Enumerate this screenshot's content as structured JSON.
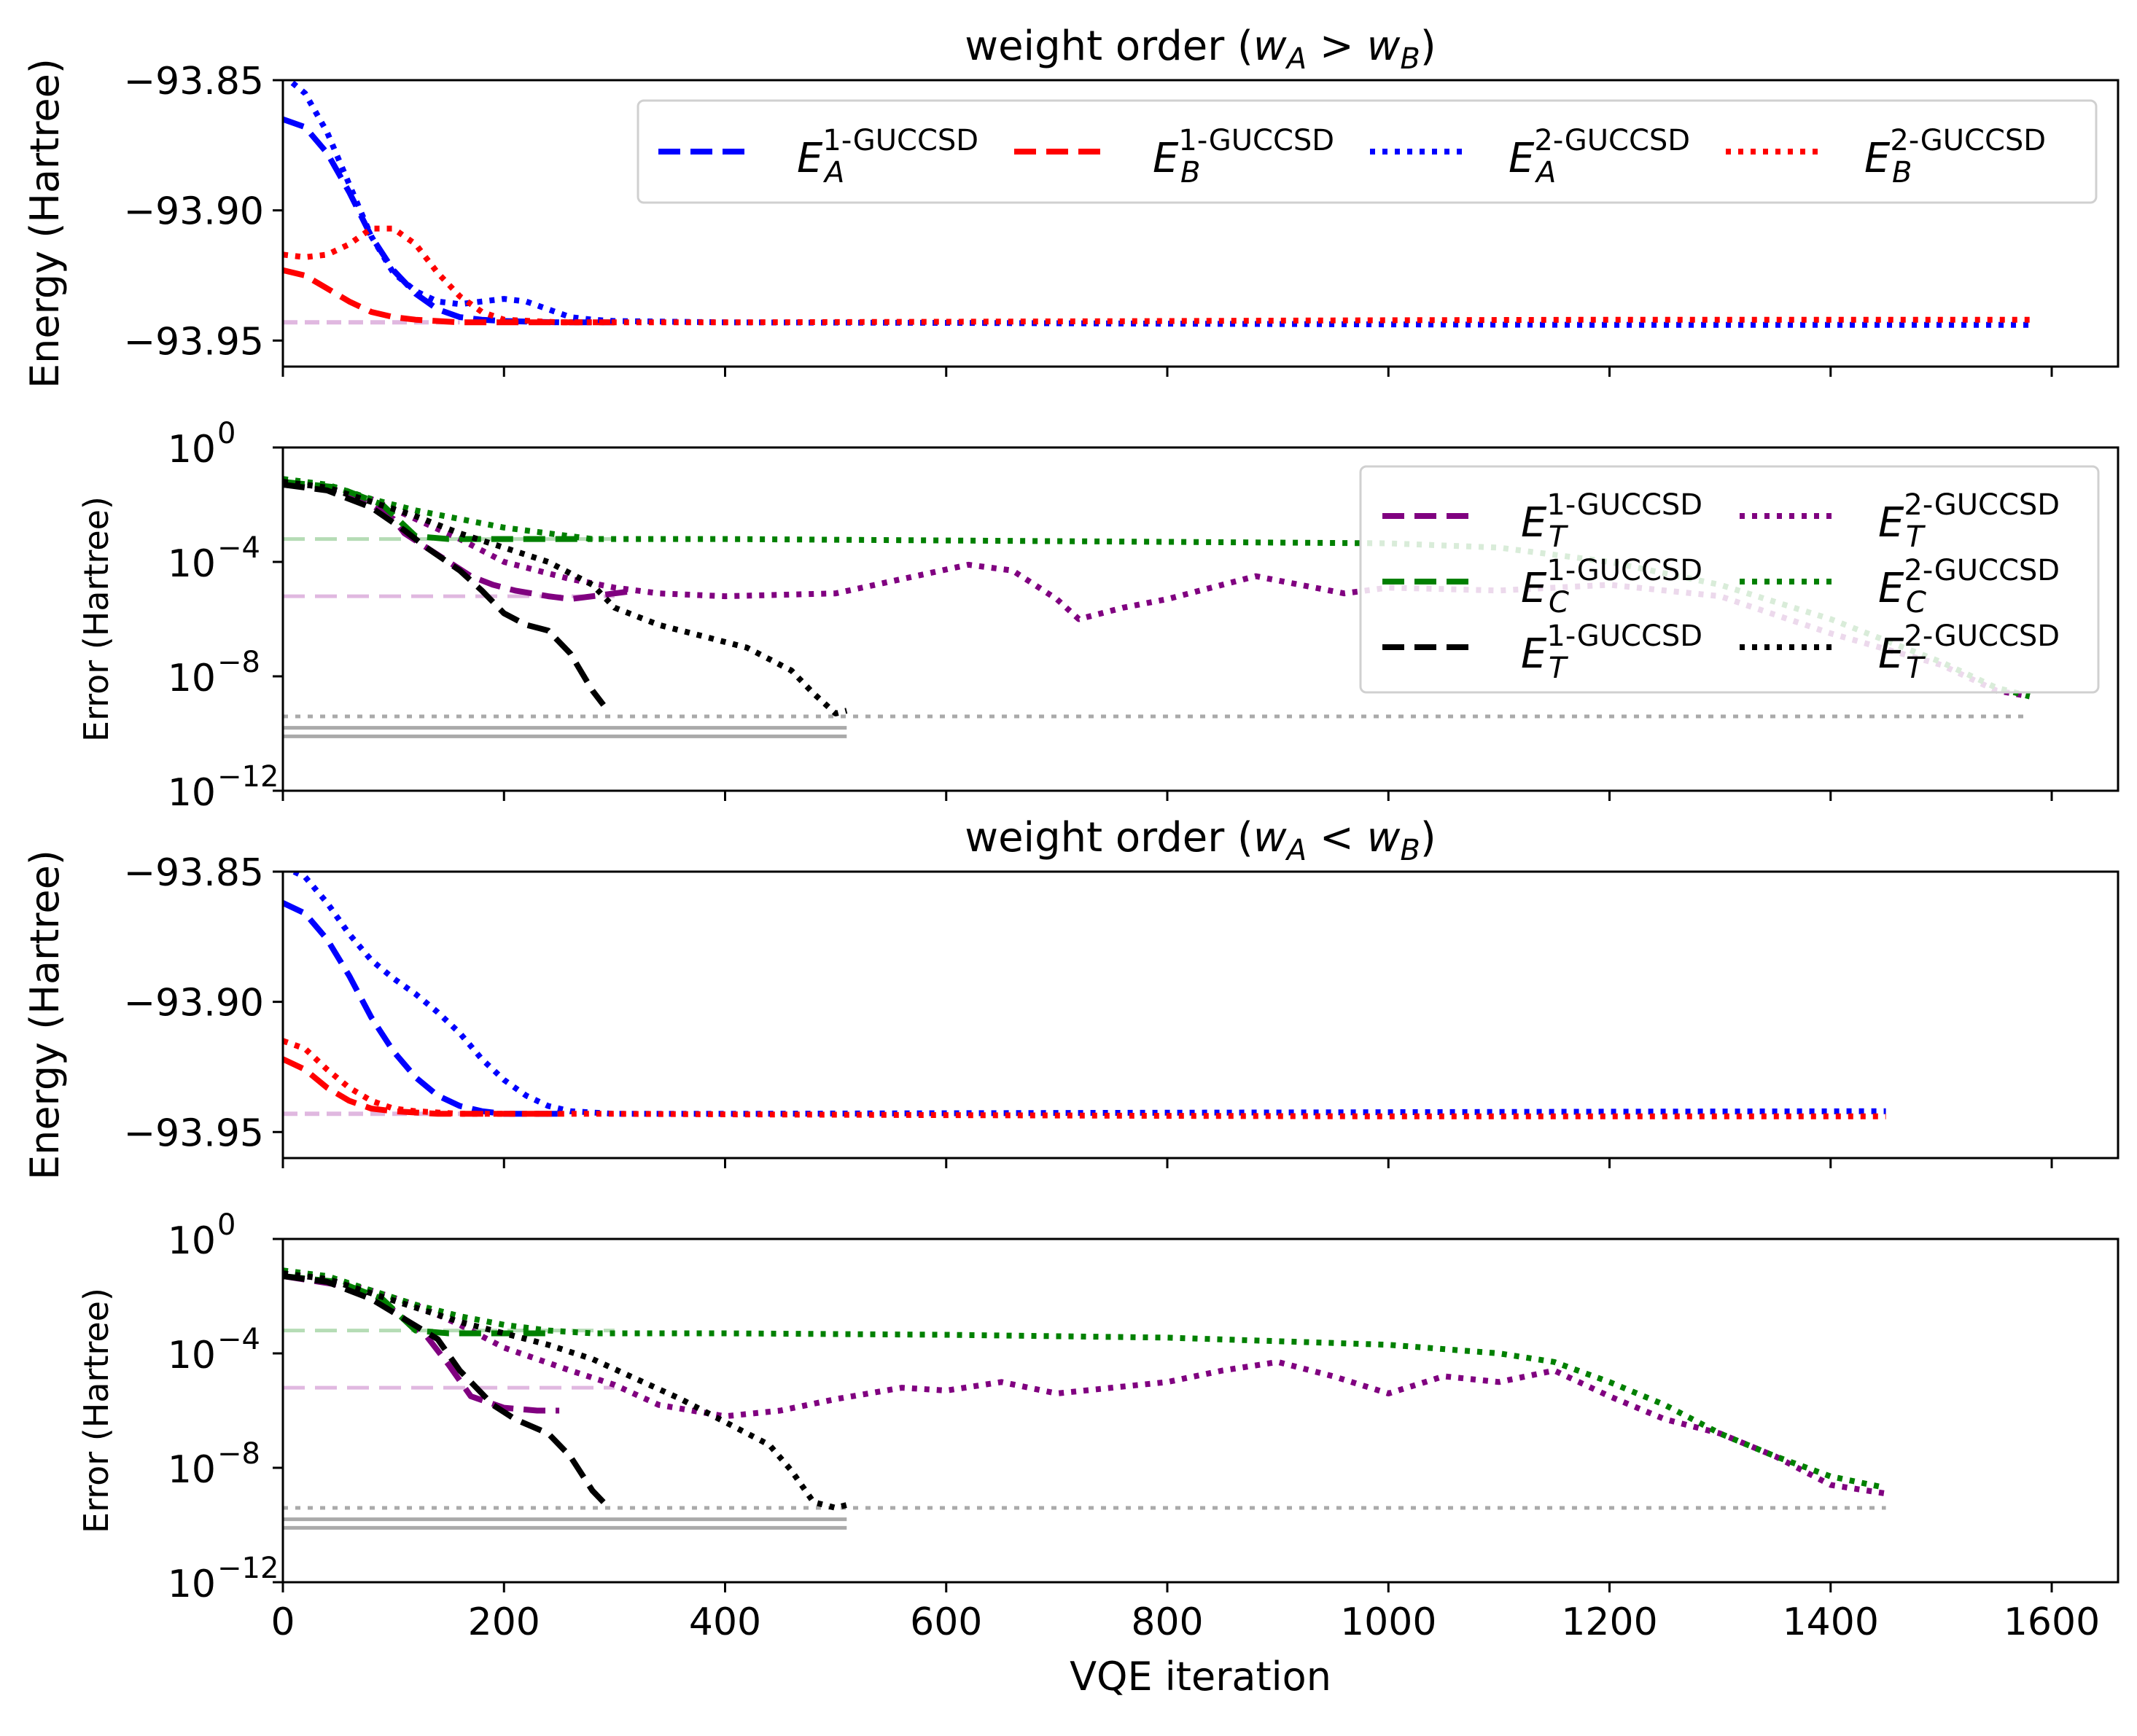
{
  "chart_data": [
    {
      "type": "line",
      "panel": "energy-top",
      "title": "weight order (w_A > w_B)",
      "title_parts": {
        "prefix": "weight order (",
        "w": "w",
        "a": "A",
        "op": ">",
        "b": "B",
        "suffix": ")"
      },
      "xlabel": "",
      "ylabel": "Energy (Hartree)",
      "xlim": [
        0,
        1660
      ],
      "ylim": [
        -93.96,
        -93.85
      ],
      "yticks": [
        -93.85,
        -93.9,
        -93.95
      ],
      "ytick_labels": [
        "−93.85",
        "−93.90",
        "−93.95"
      ],
      "xticks": [
        0,
        200,
        400,
        600,
        800,
        1000,
        1200,
        1400,
        1600
      ],
      "legend": {
        "position": "top-right",
        "columns": 4,
        "entries": [
          {
            "base": "E",
            "sub": "A",
            "sup": "1-GUCCSD",
            "color": "#0000ff",
            "style": "dashed"
          },
          {
            "base": "E",
            "sub": "B",
            "sup": "1-GUCCSD",
            "color": "#ff0000",
            "style": "dashed"
          },
          {
            "base": "E",
            "sub": "A",
            "sup": "2-GUCCSD",
            "color": "#0000ff",
            "style": "dotted"
          },
          {
            "base": "E",
            "sub": "B",
            "sup": "2-GUCCSD",
            "color": "#ff0000",
            "style": "dotted"
          }
        ]
      },
      "series": [
        {
          "name": "E_A 1-GUCCSD",
          "color": "#0000ff",
          "style": "dashed",
          "x": [
            0,
            20,
            40,
            60,
            80,
            100,
            120,
            140,
            160,
            180,
            200,
            250,
            300
          ],
          "y": [
            -93.865,
            -93.868,
            -93.878,
            -93.893,
            -93.91,
            -93.923,
            -93.932,
            -93.938,
            -93.941,
            -93.942,
            -93.9425,
            -93.943,
            -93.943
          ]
        },
        {
          "name": "E_B 1-GUCCSD",
          "color": "#ff0000",
          "style": "dashed",
          "x": [
            0,
            20,
            40,
            60,
            80,
            100,
            120,
            140,
            160,
            200,
            250,
            300
          ],
          "y": [
            -93.923,
            -93.925,
            -93.93,
            -93.935,
            -93.939,
            -93.941,
            -93.942,
            -93.9425,
            -93.943,
            -93.943,
            -93.943,
            -93.943
          ]
        },
        {
          "name": "E_A 2-GUCCSD",
          "color": "#0000ff",
          "style": "dotted",
          "x": [
            0,
            20,
            40,
            60,
            80,
            100,
            120,
            140,
            160,
            180,
            200,
            220,
            240,
            260,
            280,
            300,
            400,
            600,
            800,
            1000,
            1200,
            1400,
            1580
          ],
          "y": [
            -93.848,
            -93.855,
            -93.87,
            -93.89,
            -93.91,
            -93.924,
            -93.931,
            -93.935,
            -93.936,
            -93.935,
            -93.934,
            -93.935,
            -93.938,
            -93.941,
            -93.942,
            -93.9425,
            -93.943,
            -93.9432,
            -93.9435,
            -93.9438,
            -93.944,
            -93.944,
            -93.944
          ]
        },
        {
          "name": "E_B 2-GUCCSD",
          "color": "#ff0000",
          "style": "dotted",
          "x": [
            0,
            20,
            40,
            60,
            80,
            100,
            120,
            140,
            160,
            180,
            200,
            250,
            300,
            400,
            600,
            800,
            1000,
            1200,
            1400,
            1580
          ],
          "y": [
            -93.917,
            -93.918,
            -93.917,
            -93.913,
            -93.907,
            -93.907,
            -93.913,
            -93.924,
            -93.933,
            -93.939,
            -93.942,
            -93.943,
            -93.943,
            -93.943,
            -93.9428,
            -93.9425,
            -93.9422,
            -93.942,
            -93.942,
            -93.942
          ]
        }
      ]
    },
    {
      "type": "line",
      "panel": "error-top",
      "xlabel": "",
      "ylabel": "Error (Hartree)",
      "yscale": "log",
      "ylim_exp": [
        -12,
        0
      ],
      "ytick_exponents": [
        "0",
        "−4",
        "−8",
        "−12"
      ],
      "ytick_base": "10",
      "xlim": [
        0,
        1660
      ],
      "legend": {
        "position": "top-right",
        "columns": 2,
        "entries": [
          {
            "base": "E",
            "sub": "T",
            "sup": "1-GUCCSD",
            "color": "#800080",
            "style": "dashed"
          },
          {
            "base": "E",
            "sub": "T",
            "sup": "2-GUCCSD",
            "color": "#800080",
            "style": "dotted"
          },
          {
            "base": "E",
            "sub": "C",
            "sup": "1-GUCCSD",
            "color": "#008000",
            "style": "dashed"
          },
          {
            "base": "E",
            "sub": "C",
            "sup": "2-GUCCSD",
            "color": "#008000",
            "style": "dotted"
          },
          {
            "base": "E",
            "sub": "T",
            "sup": "1-GUCCSD",
            "color": "#000000",
            "style": "dashed"
          },
          {
            "base": "E",
            "sub": "T",
            "sup": "2-GUCCSD",
            "color": "#000000",
            "style": "dotted"
          }
        ]
      },
      "series": [
        {
          "name": "purple 1-GUCCSD",
          "color": "#800080",
          "style": "dashed",
          "x": [
            0,
            50,
            80,
            100,
            110,
            130,
            150,
            170,
            190,
            210,
            240,
            260,
            280,
            300,
            320
          ],
          "y": [
            -1.3,
            -1.5,
            -2.0,
            -2.5,
            -3.0,
            -3.5,
            -4.0,
            -4.5,
            -4.8,
            -5.0,
            -5.2,
            -5.3,
            -5.2,
            -5.1,
            -5.0
          ]
        },
        {
          "name": "purple 2-GUCCSD",
          "color": "#800080",
          "style": "dotted",
          "x": [
            0,
            40,
            80,
            120,
            160,
            200,
            260,
            300,
            340,
            400,
            500,
            560,
            620,
            660,
            700,
            720,
            760,
            800,
            840,
            880,
            920,
            960,
            1000,
            1100,
            1200,
            1300,
            1400,
            1500,
            1550,
            1580
          ],
          "y": [
            -1.2,
            -1.4,
            -1.8,
            -2.5,
            -3.2,
            -4.0,
            -4.6,
            -4.9,
            -5.1,
            -5.2,
            -5.1,
            -4.6,
            -4.1,
            -4.3,
            -5.3,
            -6.0,
            -5.6,
            -5.3,
            -4.9,
            -4.5,
            -4.8,
            -5.1,
            -4.9,
            -5.0,
            -4.8,
            -5.2,
            -6.5,
            -7.6,
            -8.5,
            -8.7
          ]
        },
        {
          "name": "green 1-GUCCSD",
          "color": "#008000",
          "style": "dashed",
          "x": [
            0,
            50,
            90,
            120,
            150,
            200,
            250,
            280
          ],
          "y": [
            -1.2,
            -1.4,
            -2.0,
            -3.1,
            -3.2,
            -3.2,
            -3.2,
            -3.2
          ]
        },
        {
          "name": "green 2-GUCCSD",
          "color": "#008000",
          "style": "dotted",
          "x": [
            0,
            40,
            80,
            120,
            160,
            200,
            240,
            280,
            300,
            400,
            600,
            800,
            1000,
            1100,
            1200,
            1300,
            1400,
            1500,
            1550,
            1580
          ],
          "y": [
            -1.1,
            -1.3,
            -1.8,
            -2.2,
            -2.5,
            -2.8,
            -3.0,
            -3.2,
            -3.2,
            -3.2,
            -3.25,
            -3.3,
            -3.35,
            -3.5,
            -4.0,
            -4.8,
            -6.0,
            -7.5,
            -8.4,
            -8.7
          ]
        },
        {
          "name": "black 1-GUCCSD",
          "color": "#000000",
          "style": "dashed",
          "x": [
            0,
            40,
            80,
            110,
            130,
            160,
            180,
            200,
            220,
            240,
            260,
            280,
            290
          ],
          "y": [
            -1.3,
            -1.5,
            -2.1,
            -2.9,
            -3.5,
            -4.3,
            -5.0,
            -5.8,
            -6.2,
            -6.4,
            -7.2,
            -8.5,
            -9.0
          ]
        },
        {
          "name": "black 2-GUCCSD",
          "color": "#000000",
          "style": "dotted",
          "x": [
            0,
            40,
            80,
            120,
            160,
            200,
            240,
            280,
            300,
            340,
            380,
            420,
            460,
            480,
            500,
            510
          ],
          "y": [
            -1.2,
            -1.4,
            -1.9,
            -2.4,
            -3.0,
            -3.5,
            -4.0,
            -4.8,
            -5.6,
            -6.2,
            -6.6,
            -7.0,
            -7.8,
            -8.6,
            -9.3,
            -9.2
          ]
        }
      ]
    },
    {
      "type": "line",
      "panel": "energy-bottom",
      "title": "weight order (w_A < w_B)",
      "title_parts": {
        "prefix": "weight order (",
        "w": "w",
        "a": "A",
        "op": "<",
        "b": "B",
        "suffix": ")"
      },
      "xlabel": "",
      "ylabel": "Energy (Hartree)",
      "xlim": [
        0,
        1660
      ],
      "ylim": [
        -93.96,
        -93.85
      ],
      "yticks": [
        -93.85,
        -93.9,
        -93.95
      ],
      "ytick_labels": [
        "−93.85",
        "−93.90",
        "−93.95"
      ],
      "series": [
        {
          "name": "E_A 1-GUCCSD",
          "color": "#0000ff",
          "style": "dashed",
          "x": [
            0,
            20,
            40,
            60,
            80,
            100,
            120,
            140,
            160,
            180,
            200,
            250
          ],
          "y": [
            -93.862,
            -93.866,
            -93.876,
            -93.89,
            -93.906,
            -93.919,
            -93.929,
            -93.936,
            -93.94,
            -93.942,
            -93.943,
            -93.943
          ]
        },
        {
          "name": "E_B 1-GUCCSD",
          "color": "#ff0000",
          "style": "dashed",
          "x": [
            0,
            20,
            40,
            60,
            80,
            100,
            120,
            140,
            160,
            200,
            250
          ],
          "y": [
            -93.922,
            -93.926,
            -93.933,
            -93.938,
            -93.941,
            -93.942,
            -93.9425,
            -93.943,
            -93.943,
            -93.943,
            -93.943
          ]
        },
        {
          "name": "E_A 2-GUCCSD",
          "color": "#0000ff",
          "style": "dotted",
          "x": [
            0,
            20,
            40,
            60,
            80,
            100,
            120,
            140,
            160,
            180,
            200,
            220,
            240,
            260,
            280,
            300,
            400,
            600,
            800,
            1000,
            1200,
            1450
          ],
          "y": [
            -93.848,
            -93.852,
            -93.862,
            -93.874,
            -93.884,
            -93.891,
            -93.897,
            -93.904,
            -93.912,
            -93.922,
            -93.93,
            -93.936,
            -93.94,
            -93.942,
            -93.9425,
            -93.943,
            -93.943,
            -93.9428,
            -93.9426,
            -93.9424,
            -93.9422,
            -93.942
          ]
        },
        {
          "name": "E_B 2-GUCCSD",
          "color": "#ff0000",
          "style": "dotted",
          "x": [
            0,
            20,
            40,
            60,
            80,
            100,
            120,
            140,
            160,
            200,
            250,
            300,
            400,
            600,
            800,
            1000,
            1200,
            1450
          ],
          "y": [
            -93.915,
            -93.918,
            -93.926,
            -93.933,
            -93.938,
            -93.941,
            -93.942,
            -93.9425,
            -93.943,
            -93.943,
            -93.943,
            -93.943,
            -93.9432,
            -93.9435,
            -93.9438,
            -93.944,
            -93.944,
            -93.944
          ]
        }
      ]
    },
    {
      "type": "line",
      "panel": "error-bottom",
      "xlabel": "VQE iteration",
      "ylabel": "Error (Hartree)",
      "yscale": "log",
      "ylim_exp": [
        -12,
        0
      ],
      "ytick_exponents": [
        "0",
        "−4",
        "−8",
        "−12"
      ],
      "ytick_base": "10",
      "xlim": [
        0,
        1660
      ],
      "xticks": [
        0,
        200,
        400,
        600,
        800,
        1000,
        1200,
        1400,
        1600
      ],
      "xtick_labels": [
        "0",
        "200",
        "400",
        "600",
        "800",
        "1000",
        "1200",
        "1400",
        "1600"
      ],
      "series": [
        {
          "name": "purple 1-GUCCSD",
          "color": "#800080",
          "style": "dashed",
          "x": [
            0,
            50,
            90,
            110,
            130,
            150,
            170,
            200,
            230,
            250
          ],
          "y": [
            -1.3,
            -1.6,
            -2.2,
            -2.8,
            -3.4,
            -4.4,
            -5.5,
            -5.9,
            -6.0,
            -6.0
          ]
        },
        {
          "name": "purple 2-GUCCSD",
          "color": "#800080",
          "style": "dotted",
          "x": [
            0,
            40,
            80,
            120,
            160,
            200,
            260,
            300,
            340,
            400,
            450,
            500,
            560,
            600,
            650,
            700,
            750,
            800,
            850,
            900,
            950,
            1000,
            1050,
            1100,
            1150,
            1200,
            1250,
            1300,
            1350,
            1400,
            1450
          ],
          "y": [
            -1.2,
            -1.4,
            -1.8,
            -2.3,
            -3.0,
            -3.8,
            -4.6,
            -5.1,
            -5.8,
            -6.2,
            -6.0,
            -5.6,
            -5.2,
            -5.3,
            -5.0,
            -5.4,
            -5.2,
            -5.0,
            -4.6,
            -4.3,
            -4.8,
            -5.4,
            -4.8,
            -5.0,
            -4.6,
            -5.5,
            -6.3,
            -6.8,
            -7.6,
            -8.6,
            -8.9
          ]
        },
        {
          "name": "green 1-GUCCSD",
          "color": "#008000",
          "style": "dashed",
          "x": [
            0,
            50,
            90,
            120,
            150,
            200,
            240
          ],
          "y": [
            -1.3,
            -1.5,
            -2.1,
            -3.2,
            -3.3,
            -3.3,
            -3.3
          ]
        },
        {
          "name": "green 2-GUCCSD",
          "color": "#008000",
          "style": "dotted",
          "x": [
            0,
            40,
            80,
            120,
            160,
            200,
            240,
            280,
            320,
            400,
            600,
            800,
            1000,
            1100,
            1150,
            1200,
            1250,
            1300,
            1350,
            1400,
            1450
          ],
          "y": [
            -1.1,
            -1.3,
            -1.8,
            -2.3,
            -2.7,
            -3.0,
            -3.2,
            -3.3,
            -3.3,
            -3.3,
            -3.35,
            -3.45,
            -3.7,
            -4.0,
            -4.3,
            -5.0,
            -5.8,
            -6.8,
            -7.6,
            -8.3,
            -8.7
          ]
        },
        {
          "name": "black 1-GUCCSD",
          "color": "#000000",
          "style": "dashed",
          "x": [
            0,
            40,
            80,
            110,
            140,
            160,
            190,
            210,
            240,
            260,
            280,
            290
          ],
          "y": [
            -1.3,
            -1.5,
            -2.1,
            -2.8,
            -3.5,
            -4.6,
            -5.8,
            -6.3,
            -6.8,
            -7.6,
            -8.8,
            -9.2
          ]
        },
        {
          "name": "black 2-GUCCSD",
          "color": "#000000",
          "style": "dotted",
          "x": [
            0,
            40,
            80,
            120,
            160,
            200,
            240,
            280,
            320,
            360,
            400,
            440,
            460,
            480,
            500,
            510
          ],
          "y": [
            -1.2,
            -1.4,
            -1.9,
            -2.4,
            -2.9,
            -3.3,
            -3.7,
            -4.2,
            -4.9,
            -5.6,
            -6.4,
            -7.2,
            -8.1,
            -9.2,
            -9.4,
            -9.3
          ]
        }
      ]
    }
  ]
}
